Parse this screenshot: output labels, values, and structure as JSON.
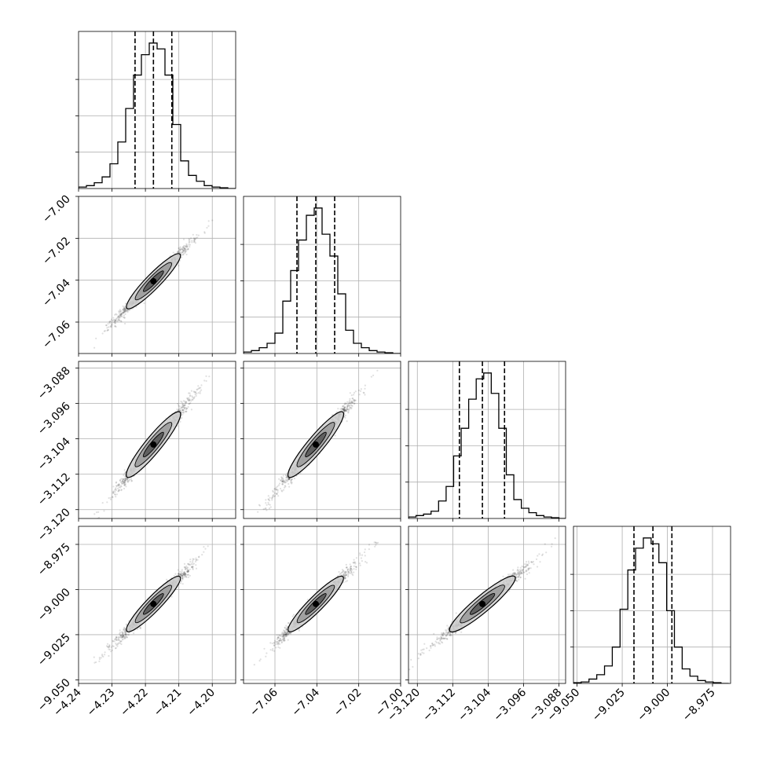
{
  "chart_data": {
    "type": "corner",
    "parameters": [
      {
        "label": "",
        "range": [
          -4.24,
          -4.193
        ],
        "ticks": [
          -4.24,
          -4.23,
          -4.22,
          -4.21,
          -4.2
        ],
        "tick_labels": [
          "−4.24",
          "−4.23",
          "−4.22",
          "−4.21",
          "−4.20"
        ],
        "quantiles": [
          -4.2231,
          -4.2176,
          -4.2121
        ],
        "hist_edges_start": -4.24,
        "hist_bin_width": 0.00235,
        "hist_counts": [
          0.01,
          0.02,
          0.04,
          0.08,
          0.17,
          0.32,
          0.55,
          0.78,
          0.92,
          1.0,
          0.96,
          0.78,
          0.44,
          0.19,
          0.09,
          0.05,
          0.02,
          0.01,
          0.005,
          0.0
        ]
      },
      {
        "label": "",
        "range": [
          -7.075,
          -7.0
        ],
        "ticks": [
          -7.06,
          -7.04,
          -7.02,
          -7.0
        ],
        "tick_labels": [
          "−7.06",
          "−7.04",
          "−7.02",
          "−7.00"
        ],
        "quantiles": [
          -7.0495,
          -7.0405,
          -7.0315
        ],
        "hist_edges_start": -7.075,
        "hist_bin_width": 0.00375,
        "hist_counts": [
          0.01,
          0.02,
          0.04,
          0.07,
          0.14,
          0.36,
          0.57,
          0.78,
          0.95,
          1.0,
          0.82,
          0.67,
          0.41,
          0.16,
          0.07,
          0.04,
          0.02,
          0.01,
          0.005,
          0.0
        ]
      },
      {
        "label": "",
        "range": [
          -3.122,
          -3.0865
        ],
        "ticks": [
          -3.12,
          -3.112,
          -3.104,
          -3.096,
          -3.088
        ],
        "tick_labels": [
          "−3.120",
          "−3.112",
          "−3.104",
          "−3.096",
          "−3.088"
        ],
        "quantiles": [
          -3.1105,
          -3.1053,
          -3.1003
        ],
        "hist_edges_start": -3.122,
        "hist_bin_width": 0.0017,
        "hist_counts": [
          0.01,
          0.02,
          0.03,
          0.05,
          0.12,
          0.22,
          0.43,
          0.62,
          0.82,
          0.96,
          1.0,
          0.86,
          0.62,
          0.3,
          0.13,
          0.07,
          0.04,
          0.02,
          0.01,
          0.005,
          0.0
        ]
      },
      {
        "label": "",
        "range": [
          -9.052,
          -8.965
        ],
        "ticks": [
          -9.05,
          -9.025,
          -9.0,
          -8.975
        ],
        "tick_labels": [
          "−9.050",
          "−9.025",
          "−9.000",
          "−8.975"
        ],
        "quantiles": [
          -9.0185,
          -9.008,
          -8.9975
        ],
        "hist_edges_start": -9.052,
        "hist_bin_width": 0.0043,
        "hist_counts": [
          0.005,
          0.01,
          0.03,
          0.06,
          0.12,
          0.25,
          0.51,
          0.78,
          0.93,
          1.0,
          0.96,
          0.83,
          0.5,
          0.25,
          0.1,
          0.05,
          0.02,
          0.01,
          0.005,
          0.0
        ]
      }
    ],
    "diagonal_ylim": [
      0,
      1.08
    ],
    "diagonal_ytick_fractions": [
      0.25,
      0.5,
      0.75
    ],
    "posterior_mean": [
      -4.2176,
      -7.0405,
      -3.1053,
      -9.008
    ],
    "posterior_std": [
      0.0055,
      0.009,
      0.0051,
      0.0105
    ],
    "correlation": 0.985,
    "grid": true,
    "colors": {
      "frame": "#000000",
      "grid": "#b0b0b0",
      "samples": "#000000"
    }
  }
}
